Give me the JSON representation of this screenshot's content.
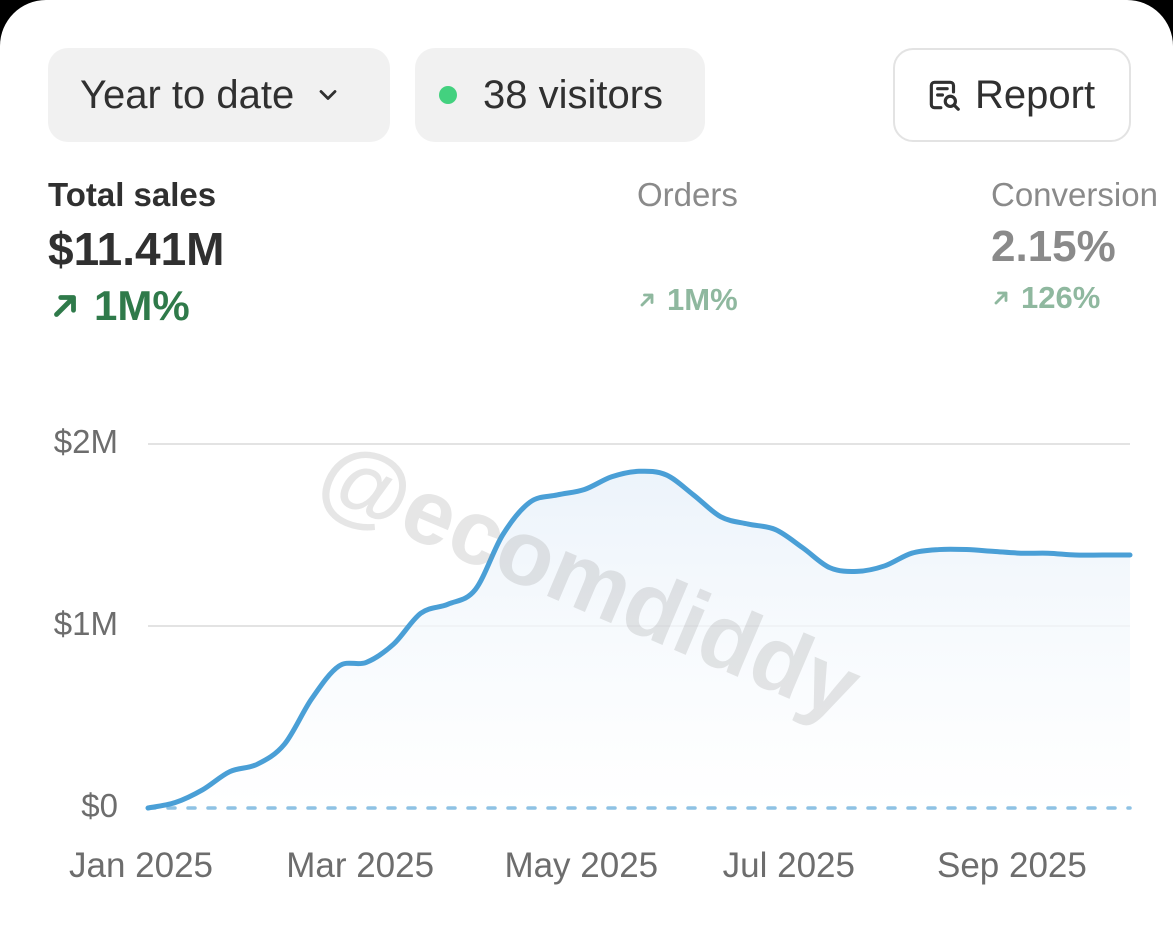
{
  "toolbar": {
    "range_label": "Year to date",
    "visitors_label": "38 visitors",
    "report_label": "Report"
  },
  "metrics": {
    "total_sales": {
      "label": "Total sales",
      "value": "$11.41M",
      "change": "1M%"
    },
    "orders": {
      "label": "Orders",
      "value": "",
      "change": "1M%"
    },
    "conversion": {
      "label": "Conversion",
      "value": "2.15%",
      "change": "126%"
    }
  },
  "watermark": "@ecomdiddy",
  "colors": {
    "line": "#4a9fd6",
    "comparison_line": "#8ec2e4",
    "grid": "#e3e3e3",
    "positive_strong": "#2f7a4a",
    "positive_muted": "#8fb89f",
    "online_dot": "#43d17f"
  },
  "icons": {
    "range": "chevron-down-icon",
    "visitors": "online-dot-icon",
    "report": "report-search-icon",
    "change": "arrow-up-right-icon"
  },
  "chart_data": {
    "type": "line",
    "y_tick_labels": [
      "$0",
      "$1M",
      "$2M"
    ],
    "y_ticks": [
      0,
      1000000,
      2000000
    ],
    "ylim": [
      0,
      2000000
    ],
    "x_tick_labels": [
      "Jan 2025",
      "Mar 2025",
      "May 2025",
      "Jul 2025",
      "Sep 2025"
    ],
    "x_tick_positions": [
      0,
      2,
      4,
      6,
      8
    ],
    "xlim": [
      0,
      9
    ],
    "grid": true,
    "series": [
      {
        "x": [
          0,
          0.25,
          0.5,
          0.75,
          1.0,
          1.25,
          1.5,
          1.75,
          2.0,
          2.25,
          2.5,
          2.75,
          3.0,
          3.25,
          3.5,
          3.75,
          4.0,
          4.25,
          4.5,
          4.75,
          5.0,
          5.25,
          5.5,
          5.75,
          6.0,
          6.25,
          6.5,
          6.75,
          7.0,
          7.25,
          7.5,
          7.75,
          8.0,
          8.25,
          8.5,
          8.75,
          9.0
        ],
        "values": [
          0,
          30000,
          100000,
          200000,
          240000,
          350000,
          600000,
          780000,
          800000,
          900000,
          1070000,
          1120000,
          1200000,
          1500000,
          1680000,
          1720000,
          1750000,
          1820000,
          1850000,
          1830000,
          1720000,
          1600000,
          1560000,
          1530000,
          1430000,
          1320000,
          1300000,
          1330000,
          1400000,
          1420000,
          1420000,
          1410000,
          1400000,
          1400000,
          1390000,
          1390000,
          1390000
        ]
      },
      {
        "x": [
          0,
          9
        ],
        "values": [
          0,
          0
        ]
      }
    ]
  }
}
